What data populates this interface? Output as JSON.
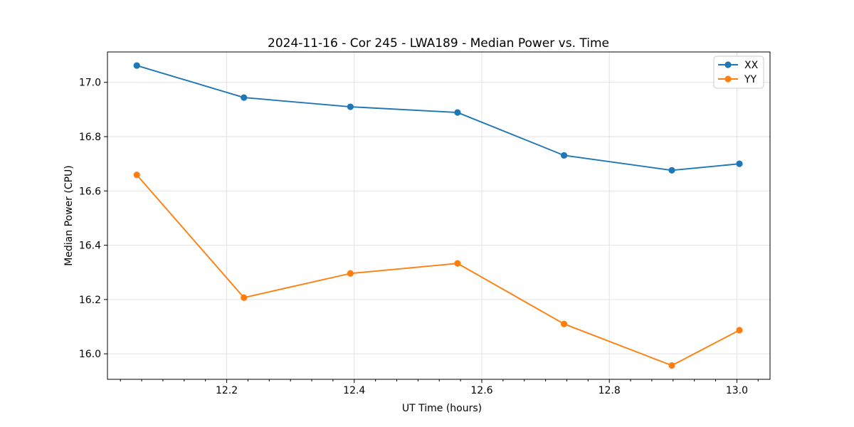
{
  "chart_data": {
    "type": "line",
    "title": "2024-11-16 - Cor 245 - LWA189 - Median Power vs. Time",
    "xlabel": "UT Time (hours)",
    "ylabel": "Median Power (CPU)",
    "xlim": [
      12.013,
      13.052
    ],
    "ylim": [
      15.906,
      17.112
    ],
    "x_major_ticks": [
      12.2,
      12.4,
      12.6,
      12.8,
      13.0
    ],
    "x_tick_labels": [
      "12.2",
      "12.4",
      "12.6",
      "12.8",
      "13.0"
    ],
    "x_minor_divisions": 6,
    "y_major_ticks": [
      16.0,
      16.2,
      16.4,
      16.6,
      16.8,
      17.0
    ],
    "y_tick_labels": [
      "16.0",
      "16.2",
      "16.4",
      "16.6",
      "16.8",
      "17.0"
    ],
    "grid": true,
    "legend_position": "upper right",
    "x": [
      12.059,
      12.227,
      12.394,
      12.562,
      12.729,
      12.898,
      13.004
    ],
    "series": [
      {
        "name": "XX",
        "color": "#1f77b4",
        "values": [
          17.062,
          16.944,
          16.91,
          16.889,
          16.731,
          16.676,
          16.7
        ]
      },
      {
        "name": "YY",
        "color": "#ff7f0e",
        "values": [
          16.659,
          16.207,
          16.296,
          16.333,
          16.11,
          15.957,
          16.087
        ]
      }
    ],
    "colors": {
      "grid": "#e2e2e2",
      "spine": "#000000",
      "legend_border": "#cccccc",
      "legend_bg": "#ffffff"
    }
  }
}
